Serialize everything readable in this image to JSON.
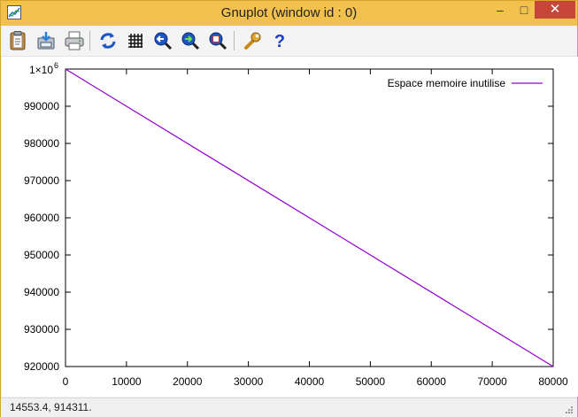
{
  "window": {
    "title": "Gnuplot (window id : 0)",
    "controls": {
      "minimize": "–",
      "maximize": "□",
      "close": "✕"
    }
  },
  "toolbar": {
    "buttons": [
      {
        "name": "copy-to-clipboard",
        "icon": "clipboard-icon"
      },
      {
        "name": "save",
        "icon": "save-icon"
      },
      {
        "name": "print",
        "icon": "printer-icon"
      },
      {
        "name": "replot",
        "icon": "refresh-icon"
      },
      {
        "name": "grid",
        "icon": "grid-icon"
      },
      {
        "name": "zoom-previous",
        "icon": "zoom-previous-icon"
      },
      {
        "name": "zoom-next",
        "icon": "zoom-next-icon"
      },
      {
        "name": "unzoom",
        "icon": "zoom-reset-icon"
      },
      {
        "name": "options",
        "icon": "wrench-icon"
      },
      {
        "name": "help",
        "icon": "help-icon"
      }
    ]
  },
  "status": {
    "coords": "14553.4,  914311."
  },
  "colors": {
    "series": "#9400d3",
    "titlebar": "#f2c14d",
    "close": "#c7463a"
  },
  "chart_data": {
    "type": "line",
    "title": "",
    "xlabel": "",
    "ylabel": "",
    "xlim": [
      0,
      80000
    ],
    "ylim": [
      920000,
      1000000
    ],
    "grid": false,
    "legend": "top-right",
    "x_ticks": [
      "0",
      "10000",
      "20000",
      "30000",
      "40000",
      "50000",
      "60000",
      "70000",
      "80000"
    ],
    "y_ticks": [
      "920000",
      "930000",
      "940000",
      "950000",
      "960000",
      "970000",
      "980000",
      "990000"
    ],
    "y_top_tick": {
      "mantissa": "1×10",
      "exponent": "6"
    },
    "series": [
      {
        "name": "Espace memoire inutilise",
        "color": "#9400d3",
        "x": [
          0,
          80000
        ],
        "y": [
          1000000,
          920000
        ]
      }
    ]
  }
}
